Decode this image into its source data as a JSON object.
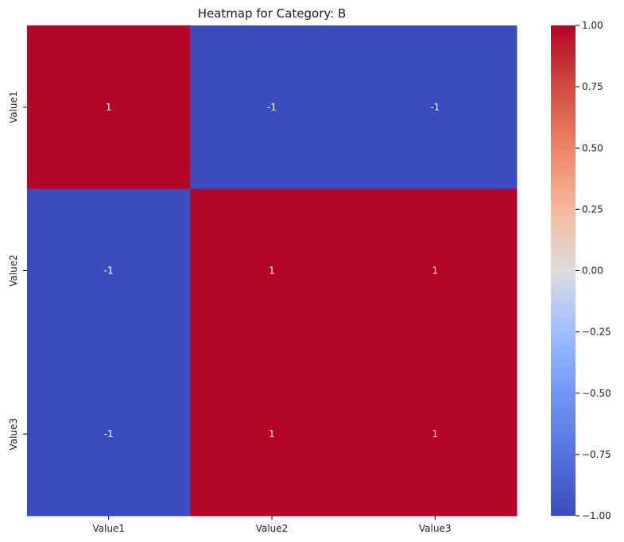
{
  "chart_data": {
    "type": "heatmap",
    "title": "Heatmap for Category: B",
    "x_categories": [
      "Value1",
      "Value2",
      "Value3"
    ],
    "y_categories": [
      "Value1",
      "Value2",
      "Value3"
    ],
    "values": [
      [
        1,
        -1,
        -1
      ],
      [
        -1,
        1,
        1
      ],
      [
        -1,
        1,
        1
      ]
    ],
    "annotations": [
      [
        "1",
        "-1",
        "-1"
      ],
      [
        "-1",
        "1",
        "1"
      ],
      [
        "-1",
        "1",
        "1"
      ]
    ],
    "colorscale": "coolwarm",
    "colors": {
      "high": "#b40426",
      "low": "#3b4cc0"
    },
    "vmin": -1.0,
    "vmax": 1.0,
    "colorbar_ticks": [
      "1.00",
      "0.75",
      "0.50",
      "0.25",
      "0.00",
      "−0.25",
      "−0.50",
      "−0.75",
      "−1.00"
    ],
    "colorbar_tick_values": [
      1.0,
      0.75,
      0.5,
      0.25,
      0.0,
      -0.25,
      -0.5,
      -0.75,
      -1.0
    ]
  }
}
